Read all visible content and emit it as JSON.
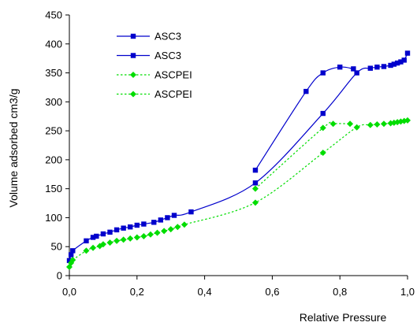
{
  "chart_data": {
    "type": "line",
    "xlabel": "Relative Pressure",
    "ylabel": "Volume adsorbed cm3/g",
    "xlim": [
      0,
      1
    ],
    "ylim": [
      0,
      450
    ],
    "x_ticks": [
      "0,0",
      "0,2",
      "0,4",
      "0,6",
      "0,8",
      "1,0"
    ],
    "y_ticks": [
      "0",
      "50",
      "100",
      "150",
      "200",
      "250",
      "300",
      "350",
      "400",
      "450"
    ],
    "grid": false,
    "legend_position": "top-left",
    "series": [
      {
        "name": "ASC3",
        "color": "#0000cc",
        "line_style": "solid",
        "marker": "square",
        "x": [
          0.0,
          0.005,
          0.01,
          0.05,
          0.07,
          0.08,
          0.1,
          0.12,
          0.14,
          0.16,
          0.18,
          0.2,
          0.22,
          0.25,
          0.27,
          0.29,
          0.31,
          0.36,
          0.55,
          0.75,
          0.85,
          0.89,
          0.91,
          0.93,
          0.95,
          0.96,
          0.97,
          0.98,
          0.99,
          1.0
        ],
        "y": [
          26,
          36,
          43,
          60,
          66,
          68,
          72,
          75,
          79,
          82,
          84,
          87,
          89,
          92,
          96,
          100,
          104,
          110,
          160,
          280,
          350,
          358,
          360,
          361,
          363,
          365,
          367,
          369,
          372,
          384
        ]
      },
      {
        "name": "ASC3",
        "color": "#0000cc",
        "line_style": "solid",
        "marker": "square",
        "x": [
          0.55,
          0.7,
          0.75,
          0.8,
          0.84
        ],
        "y": [
          182,
          318,
          350,
          360,
          357
        ]
      },
      {
        "name": "ASCPEI",
        "color": "#00dd00",
        "line_style": "dotted",
        "marker": "diamond",
        "x": [
          0.0,
          0.005,
          0.01,
          0.05,
          0.07,
          0.09,
          0.1,
          0.12,
          0.14,
          0.16,
          0.18,
          0.2,
          0.22,
          0.24,
          0.26,
          0.28,
          0.3,
          0.32,
          0.34,
          0.55,
          0.75,
          0.85,
          0.89,
          0.91,
          0.93,
          0.95,
          0.96,
          0.97,
          0.98,
          0.99,
          1.0
        ],
        "y": [
          15,
          22,
          27,
          43,
          48,
          51,
          54,
          57,
          60,
          62,
          64,
          66,
          68,
          71,
          74,
          77,
          80,
          84,
          88,
          126,
          212,
          256,
          260,
          261,
          262,
          263,
          264,
          265,
          266,
          267,
          268
        ]
      },
      {
        "name": "ASCPEI",
        "color": "#00dd00",
        "line_style": "dotted",
        "marker": "diamond",
        "x": [
          0.55,
          0.75,
          0.78,
          0.83
        ],
        "y": [
          150,
          255,
          262,
          262
        ]
      }
    ]
  }
}
